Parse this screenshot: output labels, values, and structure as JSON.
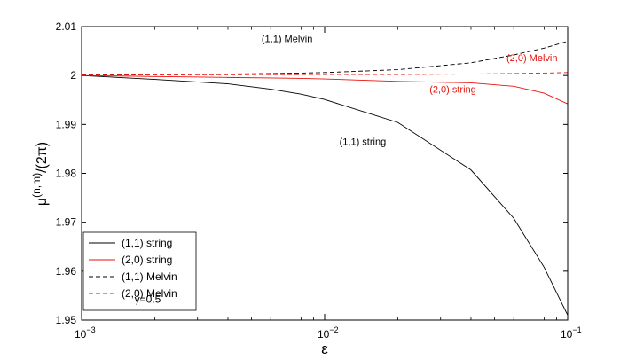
{
  "chart_data": {
    "type": "line",
    "xscale": "log",
    "xlim": [
      0.001,
      0.1
    ],
    "ylim": [
      1.95,
      2.01
    ],
    "xlabel": "ε",
    "ylabel": {
      "base": "μ",
      "sup": "(n,m)",
      "tail": "/(2π)"
    },
    "yticks": [
      {
        "value": 1.95,
        "label": "1.95"
      },
      {
        "value": 1.96,
        "label": "1.96"
      },
      {
        "value": 1.97,
        "label": "1.97"
      },
      {
        "value": 1.98,
        "label": "1.98"
      },
      {
        "value": 1.99,
        "label": "1.99"
      },
      {
        "value": 2.0,
        "label": "2"
      },
      {
        "value": 2.01,
        "label": "2.01"
      }
    ],
    "xticks": [
      {
        "value": 0.001,
        "base": "10",
        "exp": "−3"
      },
      {
        "value": 0.01,
        "base": "10",
        "exp": "−2"
      },
      {
        "value": 0.1,
        "base": "10",
        "exp": "−1"
      }
    ],
    "series": [
      {
        "name": "(1,1) string",
        "color": "#000000",
        "dash": "solid",
        "x": [
          0.001,
          0.002,
          0.004,
          0.006,
          0.008,
          0.01,
          0.02,
          0.04,
          0.06,
          0.08,
          0.1
        ],
        "y": [
          2.0,
          1.9992,
          1.9983,
          1.9972,
          1.9962,
          1.9951,
          1.9904,
          1.9807,
          1.9708,
          1.9608,
          1.951
        ]
      },
      {
        "name": "(2,0) string",
        "color": "#e8120c",
        "dash": "solid",
        "x": [
          0.001,
          0.002,
          0.004,
          0.006,
          0.008,
          0.01,
          0.02,
          0.04,
          0.06,
          0.08,
          0.1
        ],
        "y": [
          2.0,
          1.9998,
          1.9996,
          1.9995,
          1.9994,
          1.9993,
          1.9988,
          1.9985,
          1.9978,
          1.9964,
          1.9942
        ]
      },
      {
        "name": "(1,1) Melvin",
        "color": "#000000",
        "dash": "dashed",
        "x": [
          0.001,
          0.002,
          0.004,
          0.006,
          0.008,
          0.01,
          0.02,
          0.04,
          0.06,
          0.08,
          0.1
        ],
        "y": [
          2.0001,
          2.0002,
          2.0003,
          2.0004,
          2.0005,
          2.0006,
          2.0012,
          2.0026,
          2.0042,
          2.0056,
          2.007
        ]
      },
      {
        "name": "(2,0) Melvin",
        "color": "#e8120c",
        "dash": "dashed",
        "x": [
          0.001,
          0.01,
          0.02,
          0.04,
          0.06,
          0.08,
          0.1
        ],
        "y": [
          2.0001,
          2.0002,
          2.0002,
          2.0003,
          2.0004,
          2.0005,
          2.0006
        ]
      }
    ],
    "annotations": [
      {
        "text": "(1,1) Melvin",
        "x": 0.0055,
        "y": 2.0068,
        "color": "#000000"
      },
      {
        "text": "(2,0) Melvin",
        "x": 0.056,
        "y": 2.0029,
        "color": "#e8120c"
      },
      {
        "text": "(2,0) string",
        "x": 0.027,
        "y": 1.9965,
        "color": "#e8120c"
      },
      {
        "text": "(1,1) string",
        "x": 0.0115,
        "y": 1.9858,
        "color": "#000000"
      }
    ],
    "legend": {
      "position": "bottom-left",
      "entries": [
        "(1,1) string",
        "(2,0) string",
        "(1,1) Melvin",
        "(2,0) Melvin"
      ]
    },
    "parameter_text": {
      "label": "γ=0.5",
      "x": 0.00165,
      "y": 1.9535
    }
  }
}
